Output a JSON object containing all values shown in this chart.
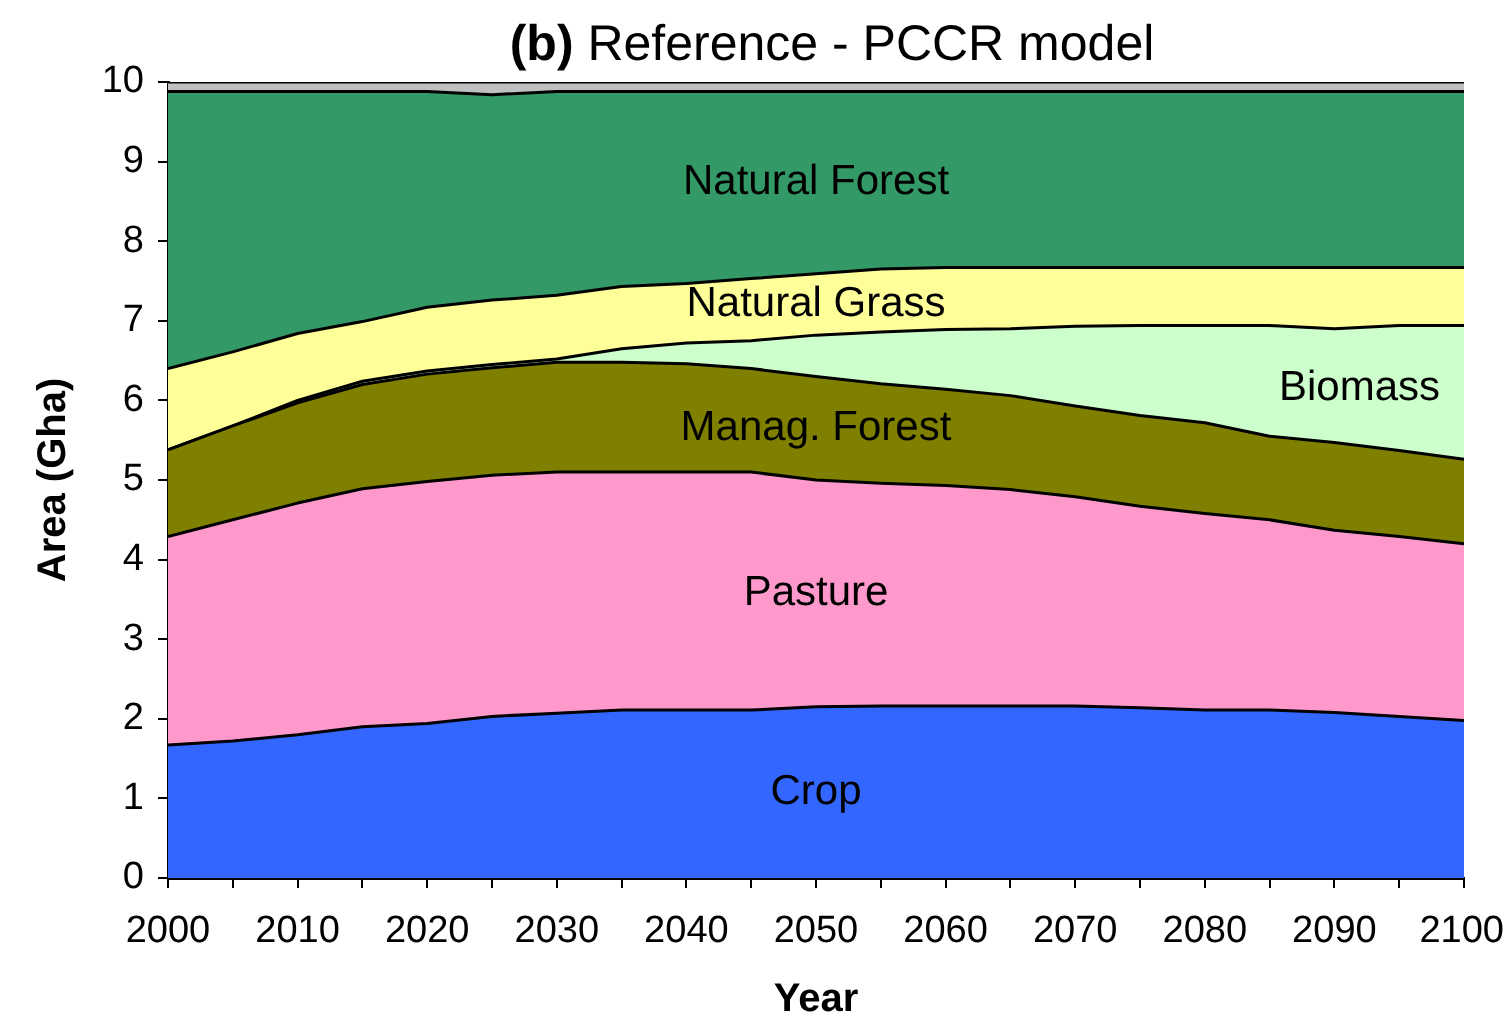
{
  "chart_data": {
    "type": "area",
    "title": "(b) Reference - PCCR model",
    "xlabel": "Year",
    "ylabel": "Area (Gha)",
    "stacked": true,
    "grid": false,
    "legend": false,
    "marker": "none",
    "x": [
      2000,
      2005,
      2010,
      2015,
      2020,
      2025,
      2030,
      2035,
      2040,
      2045,
      2050,
      2055,
      2060,
      2065,
      2070,
      2075,
      2080,
      2085,
      2090,
      2095,
      2100
    ],
    "xlim": [
      2000,
      2100
    ],
    "xticks": [
      2000,
      {
        "value": 2005,
        "label": null
      },
      2010,
      {
        "value": 2015,
        "label": null
      },
      2020,
      {
        "value": 2025,
        "label": null
      },
      2030,
      {
        "value": 2035,
        "label": null
      },
      2040,
      {
        "value": 2045,
        "label": null
      },
      2050,
      {
        "value": 2055,
        "label": null
      },
      2060,
      {
        "value": 2065,
        "label": null
      },
      2070,
      {
        "value": 2075,
        "label": null
      },
      2080,
      {
        "value": 2085,
        "label": null
      },
      2090,
      {
        "value": 2095,
        "label": null
      },
      2100
    ],
    "ylim": [
      0,
      10
    ],
    "yticks": [
      0,
      1,
      2,
      3,
      4,
      5,
      6,
      7,
      8,
      9,
      10
    ],
    "series": [
      {
        "name": "Crop",
        "color": "#3366ff",
        "values": [
          1.67,
          1.72,
          1.8,
          1.9,
          1.94,
          2.03,
          2.07,
          2.11,
          2.11,
          2.11,
          2.15,
          2.16,
          2.16,
          2.16,
          2.16,
          2.14,
          2.11,
          2.11,
          2.08,
          2.03,
          1.98
        ]
      },
      {
        "name": "Pasture",
        "color": "#ff99cc",
        "values": [
          2.62,
          2.78,
          2.91,
          2.99,
          3.04,
          3.03,
          3.03,
          2.99,
          2.99,
          2.99,
          2.85,
          2.8,
          2.77,
          2.72,
          2.63,
          2.53,
          2.47,
          2.39,
          2.29,
          2.26,
          2.22
        ]
      },
      {
        "name": "Manag. Forest",
        "color": "#808000",
        "values": [
          1.09,
          1.18,
          1.26,
          1.31,
          1.35,
          1.35,
          1.38,
          1.38,
          1.36,
          1.3,
          1.3,
          1.25,
          1.21,
          1.18,
          1.14,
          1.14,
          1.14,
          1.05,
          1.1,
          1.08,
          1.06
        ]
      },
      {
        "name": "Biomass",
        "color": "#ccffcc",
        "values": [
          0,
          0,
          0.03,
          0.04,
          0.04,
          0.04,
          0.04,
          0.17,
          0.26,
          0.35,
          0.52,
          0.65,
          0.75,
          0.84,
          1.0,
          1.13,
          1.22,
          1.39,
          1.43,
          1.57,
          1.68
        ]
      },
      {
        "name": "Natural Grass",
        "color": "#ffff99",
        "values": [
          1.02,
          0.93,
          0.84,
          0.75,
          0.8,
          0.81,
          0.8,
          0.78,
          0.75,
          0.78,
          0.77,
          0.79,
          0.78,
          0.77,
          0.74,
          0.73,
          0.73,
          0.73,
          0.77,
          0.73,
          0.73
        ]
      },
      {
        "name": "Natural Forest",
        "color": "#339966",
        "values": [
          3.48,
          3.27,
          3.04,
          2.89,
          2.71,
          2.58,
          2.56,
          2.45,
          2.41,
          2.35,
          2.29,
          2.23,
          2.21,
          2.21,
          2.21,
          2.21,
          2.21,
          2.21,
          2.21,
          2.21,
          2.21
        ]
      },
      {
        "color": "#c0c0c0",
        "values": [
          0.12,
          0.12,
          0.12,
          0.12,
          0.12,
          0.16,
          0.12,
          0.12,
          0.12,
          0.12,
          0.12,
          0.12,
          0.12,
          0.12,
          0.12,
          0.12,
          0.12,
          0.12,
          0.12,
          0.12,
          0.12
        ]
      }
    ]
  }
}
